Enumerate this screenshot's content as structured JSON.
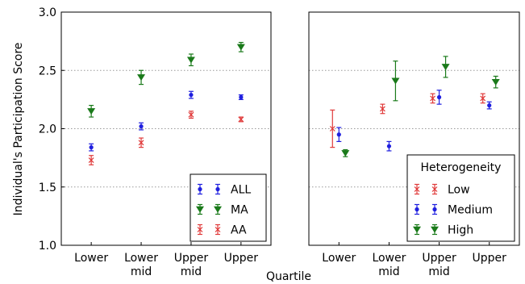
{
  "chart_data": [
    {
      "type": "scatter",
      "panel": "left",
      "ylabel": "Individual's Participation Score",
      "xlabel": "",
      "categories": [
        "Lower",
        "Lower\nmid",
        "Upper\nmid",
        "Upper"
      ],
      "ylim": [
        1.0,
        3.0
      ],
      "yticks": [
        "1.0",
        "1.5",
        "2.0",
        "2.5",
        "3.0"
      ],
      "grid": "horizontal dotted",
      "legend_placement": "lower-right",
      "series": [
        {
          "name": "ALL",
          "color": "#1f1fdf",
          "marker": "dot",
          "values": [
            1.84,
            2.02,
            2.29,
            2.27
          ],
          "errors": [
            0.03,
            0.03,
            0.03,
            0.02
          ]
        },
        {
          "name": "MA",
          "color": "#1a7a1a",
          "marker": "triangle-down",
          "values": [
            2.15,
            2.44,
            2.59,
            2.7
          ],
          "errors": [
            0.05,
            0.06,
            0.05,
            0.04
          ]
        },
        {
          "name": "AA",
          "color": "#e03a3a",
          "marker": "x",
          "values": [
            1.73,
            1.88,
            2.12,
            2.08
          ],
          "errors": [
            0.04,
            0.04,
            0.03,
            0.02
          ]
        }
      ]
    },
    {
      "type": "scatter",
      "panel": "right",
      "xlabel": "Quartile",
      "categories": [
        "Lower",
        "Lower\nmid",
        "Upper\nmid",
        "Upper"
      ],
      "ylim": [
        1.0,
        3.0
      ],
      "grid": "horizontal dotted",
      "legend_title": "Heterogeneity",
      "legend_placement": "lower-right",
      "series": [
        {
          "name": "Low",
          "color": "#e03a3a",
          "marker": "x",
          "values": [
            2.0,
            2.17,
            2.26,
            2.26
          ],
          "errors": [
            0.16,
            0.04,
            0.04,
            0.04
          ]
        },
        {
          "name": "Medium",
          "color": "#1f1fdf",
          "marker": "dot",
          "values": [
            1.95,
            1.85,
            2.27,
            2.2
          ],
          "errors": [
            0.06,
            0.04,
            0.06,
            0.03
          ]
        },
        {
          "name": "High",
          "color": "#1a7a1a",
          "marker": "triangle-down",
          "values": [
            1.79,
            2.41,
            2.53,
            2.4
          ],
          "errors": [
            0.03,
            0.17,
            0.09,
            0.05
          ]
        }
      ]
    }
  ]
}
